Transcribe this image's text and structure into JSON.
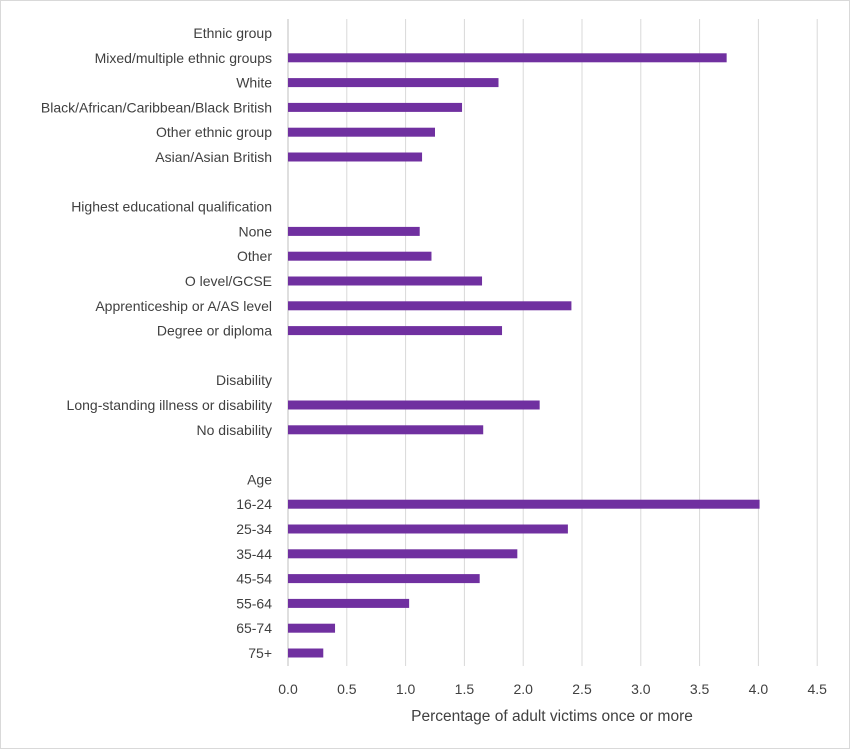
{
  "chart_data": {
    "type": "bar",
    "orientation": "horizontal",
    "xlabel": "Percentage of adult victims once or more",
    "ylabel": "",
    "title": "",
    "xlim": [
      0,
      4.5
    ],
    "xticks": [
      "0.0",
      "0.5",
      "1.0",
      "1.5",
      "2.0",
      "2.5",
      "3.0",
      "3.5",
      "4.0",
      "4.5"
    ],
    "grid": true,
    "bar_color": "#7030a0",
    "rows": [
      {
        "label": "Ethnic group",
        "header": true
      },
      {
        "label": "Mixed/multiple ethnic groups",
        "value": 3.73
      },
      {
        "label": "White",
        "value": 1.79
      },
      {
        "label": "Black/African/Caribbean/Black British",
        "value": 1.48
      },
      {
        "label": "Other ethnic group",
        "value": 1.25
      },
      {
        "label": "Asian/Asian British",
        "value": 1.14
      },
      {
        "label": "",
        "spacer": true
      },
      {
        "label": "Highest educational qualification",
        "header": true
      },
      {
        "label": "None",
        "value": 1.12
      },
      {
        "label": "Other",
        "value": 1.22
      },
      {
        "label": "O level/GCSE",
        "value": 1.65
      },
      {
        "label": "Apprenticeship or A/AS level",
        "value": 2.41
      },
      {
        "label": "Degree or diploma",
        "value": 1.82
      },
      {
        "label": "",
        "spacer": true
      },
      {
        "label": "Disability",
        "header": true
      },
      {
        "label": "Long-standing illness or disability",
        "value": 2.14
      },
      {
        "label": "No disability",
        "value": 1.66
      },
      {
        "label": "",
        "spacer": true
      },
      {
        "label": "Age",
        "header": true
      },
      {
        "label": "16-24",
        "value": 4.01
      },
      {
        "label": "25-34",
        "value": 2.38
      },
      {
        "label": "35-44",
        "value": 1.95
      },
      {
        "label": "45-54",
        "value": 1.63
      },
      {
        "label": "55-64",
        "value": 1.03
      },
      {
        "label": "65-74",
        "value": 0.4
      },
      {
        "label": "75+",
        "value": 0.3
      }
    ]
  }
}
